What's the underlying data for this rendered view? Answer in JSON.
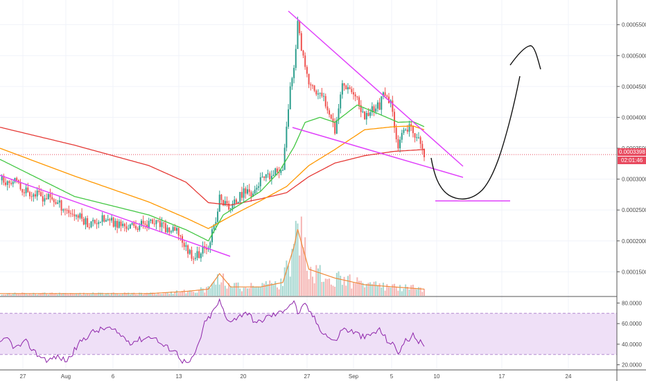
{
  "price_axis": {
    "ticks": [
      "0.0005500",
      "0.0005000",
      "0.0004500",
      "0.0004000",
      "0.0003500",
      "0.0003000",
      "0.0002500",
      "0.0002000",
      "0.0001500"
    ],
    "tick_values": [
      0.00055,
      0.0005,
      0.00045,
      0.0004,
      0.00035,
      0.0003,
      0.00025,
      0.0002,
      0.00015
    ],
    "range": [
      0.00011,
      0.00059
    ]
  },
  "rsi_axis": {
    "ticks": [
      "80.0000",
      "60.0000",
      "40.0000",
      "20.0000"
    ],
    "tick_values": [
      80,
      60,
      40,
      20
    ],
    "range": [
      15,
      85
    ],
    "band": [
      30,
      70
    ]
  },
  "current_price": {
    "label": "0.0003398",
    "value": 0.0003398,
    "color": "#e84a5f"
  },
  "countdown": {
    "label": "02:01:46",
    "color": "#e84a5f"
  },
  "x_axis": {
    "labels": [
      "27",
      "Aug",
      "6",
      "13",
      "20",
      "27",
      "Sep",
      "5",
      "10",
      "17",
      "24"
    ]
  },
  "colors": {
    "up": "#2e9f8e",
    "down": "#ef5350",
    "ma_fast": "#43c743",
    "ma_mid": "#ff9800",
    "ma_slow": "#e53935",
    "trendline": "#e040fb",
    "rsi_line": "#8e24aa",
    "rsi_band": "#efe0f7",
    "drawing": "#111111",
    "grid": "#f0f3fa"
  },
  "chart_data": {
    "type": "candlestick",
    "interval": "4h",
    "x_labels": [
      "27",
      "Aug",
      "6",
      "13",
      "20",
      "27",
      "Sep",
      "5",
      "10",
      "17",
      "24"
    ],
    "close_path": [
      [
        0,
        0.000298
      ],
      [
        6,
        0.000299
      ],
      [
        12,
        0.000285
      ],
      [
        20,
        0.000274
      ],
      [
        28,
        0.000268
      ],
      [
        36,
        0.00025
      ],
      [
        42,
        0.00024
      ],
      [
        48,
        0.000228
      ],
      [
        54,
        0.000235
      ],
      [
        60,
        0.00023
      ],
      [
        66,
        0.000225
      ],
      [
        72,
        0.000222
      ],
      [
        78,
        0.00023
      ],
      [
        84,
        0.000228
      ],
      [
        90,
        0.000218
      ],
      [
        96,
        0.000213
      ],
      [
        100,
        0.000188
      ],
      [
        104,
        0.000176
      ],
      [
        108,
        0.00018
      ],
      [
        112,
        0.000196
      ],
      [
        116,
        0.00023
      ],
      [
        118,
        0.00027
      ],
      [
        120,
        0.000262
      ],
      [
        124,
        0.000254
      ],
      [
        128,
        0.000268
      ],
      [
        132,
        0.000282
      ],
      [
        136,
        0.000277
      ],
      [
        140,
        0.000298
      ],
      [
        146,
        0.000304
      ],
      [
        152,
        0.000322
      ],
      [
        154,
        0.00038
      ],
      [
        156,
        0.000454
      ],
      [
        158,
        0.000478
      ],
      [
        160,
        0.000556
      ],
      [
        162,
        0.000505
      ],
      [
        166,
        0.000455
      ],
      [
        170,
        0.00044
      ],
      [
        174,
        0.00043
      ],
      [
        178,
        0.000405
      ],
      [
        180,
        0.00038
      ],
      [
        184,
        0.000455
      ],
      [
        188,
        0.00045
      ],
      [
        192,
        0.000425
      ],
      [
        196,
        0.0004
      ],
      [
        200,
        0.000415
      ],
      [
        204,
        0.00042
      ],
      [
        206,
        0.000435
      ],
      [
        210,
        0.000422
      ],
      [
        212,
        0.00039
      ],
      [
        214,
        0.000355
      ],
      [
        216,
        0.000368
      ],
      [
        220,
        0.000385
      ],
      [
        222,
        0.000372
      ],
      [
        224,
        0.000374
      ],
      [
        226,
        0.000352
      ],
      [
        228,
        0.000338
      ]
    ],
    "ma_fast_path": [
      [
        0,
        0.000332
      ],
      [
        40,
        0.000272
      ],
      [
        80,
        0.000242
      ],
      [
        100,
        0.000218
      ],
      [
        112,
        0.0002
      ],
      [
        120,
        0.000242
      ],
      [
        140,
        0.00028
      ],
      [
        150,
        0.000312
      ],
      [
        158,
        0.000352
      ],
      [
        164,
        0.000392
      ],
      [
        172,
        0.0004
      ],
      [
        180,
        0.000392
      ],
      [
        192,
        0.00042
      ],
      [
        204,
        0.000405
      ],
      [
        214,
        0.000392
      ],
      [
        222,
        0.000393
      ],
      [
        228,
        0.000385
      ]
    ],
    "ma_mid_path": [
      [
        0,
        0.00035
      ],
      [
        40,
        0.000305
      ],
      [
        80,
        0.000263
      ],
      [
        100,
        0.000237
      ],
      [
        112,
        0.00022
      ],
      [
        124,
        0.00024
      ],
      [
        140,
        0.000265
      ],
      [
        154,
        0.000288
      ],
      [
        166,
        0.000322
      ],
      [
        180,
        0.000348
      ],
      [
        196,
        0.00038
      ],
      [
        212,
        0.000385
      ],
      [
        222,
        0.000386
      ],
      [
        228,
        0.00038
      ]
    ],
    "ma_slow_path": [
      [
        0,
        0.000384
      ],
      [
        40,
        0.000355
      ],
      [
        80,
        0.000322
      ],
      [
        100,
        0.000295
      ],
      [
        112,
        0.000262
      ],
      [
        124,
        0.000258
      ],
      [
        140,
        0.000268
      ],
      [
        154,
        0.000278
      ],
      [
        166,
        0.000304
      ],
      [
        180,
        0.000326
      ],
      [
        196,
        0.000338
      ],
      [
        212,
        0.000345
      ],
      [
        228,
        0.000348
      ]
    ],
    "volume_path": [
      [
        0,
        1
      ],
      [
        40,
        1
      ],
      [
        80,
        1
      ],
      [
        100,
        2
      ],
      [
        112,
        3
      ],
      [
        118,
        10
      ],
      [
        124,
        4
      ],
      [
        140,
        4
      ],
      [
        152,
        6
      ],
      [
        158,
        22
      ],
      [
        160,
        30
      ],
      [
        166,
        12
      ],
      [
        180,
        8
      ],
      [
        196,
        5
      ],
      [
        212,
        4
      ],
      [
        228,
        3
      ]
    ],
    "rsi_path": [
      [
        0,
        40
      ],
      [
        4,
        46
      ],
      [
        8,
        36
      ],
      [
        14,
        42
      ],
      [
        20,
        30
      ],
      [
        26,
        24
      ],
      [
        30,
        28
      ],
      [
        36,
        24
      ],
      [
        44,
        44
      ],
      [
        50,
        52
      ],
      [
        58,
        56
      ],
      [
        64,
        50
      ],
      [
        70,
        42
      ],
      [
        76,
        45
      ],
      [
        82,
        48
      ],
      [
        88,
        38
      ],
      [
        94,
        34
      ],
      [
        98,
        24
      ],
      [
        102,
        21
      ],
      [
        106,
        36
      ],
      [
        110,
        60
      ],
      [
        114,
        70
      ],
      [
        118,
        82
      ],
      [
        122,
        63
      ],
      [
        128,
        66
      ],
      [
        132,
        72
      ],
      [
        138,
        60
      ],
      [
        144,
        67
      ],
      [
        150,
        70
      ],
      [
        154,
        76
      ],
      [
        158,
        82
      ],
      [
        160,
        70
      ],
      [
        164,
        78
      ],
      [
        168,
        68
      ],
      [
        172,
        55
      ],
      [
        176,
        48
      ],
      [
        180,
        42
      ],
      [
        184,
        55
      ],
      [
        190,
        52
      ],
      [
        196,
        46
      ],
      [
        200,
        50
      ],
      [
        204,
        54
      ],
      [
        208,
        44
      ],
      [
        212,
        38
      ],
      [
        214,
        32
      ],
      [
        218,
        43
      ],
      [
        222,
        48
      ],
      [
        226,
        42
      ],
      [
        228,
        36
      ]
    ],
    "price_range": [
      0.00011,
      0.00059
    ],
    "rsi_range": [
      15,
      85
    ]
  }
}
